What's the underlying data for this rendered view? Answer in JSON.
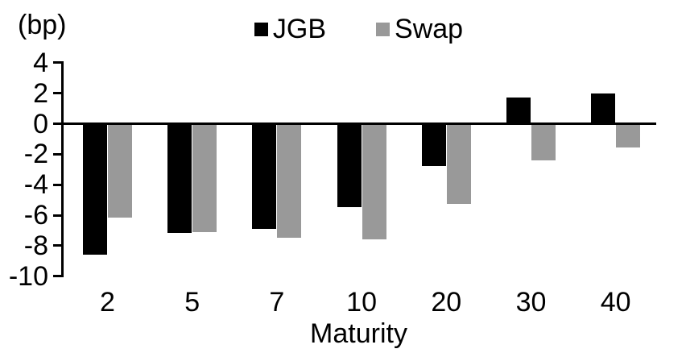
{
  "chart_data": {
    "type": "bar",
    "title": "",
    "unit_label": "(bp)",
    "xlabel": "Maturity",
    "categories": [
      "2",
      "5",
      "7",
      "10",
      "20",
      "30",
      "40"
    ],
    "series": [
      {
        "name": "JGB",
        "color": "#000000",
        "values": [
          -8.5,
          -7.1,
          -6.8,
          -5.4,
          -2.7,
          1.7,
          2.0
        ]
      },
      {
        "name": "Swap",
        "color": "#999999",
        "values": [
          -6.1,
          -7.0,
          -7.4,
          -7.5,
          -5.2,
          -2.3,
          -1.5
        ]
      }
    ],
    "ylim": [
      -10,
      4
    ],
    "yticks": [
      4,
      2,
      0,
      -2,
      -4,
      -6,
      -8,
      -10
    ],
    "grid": false,
    "legend_position": "top-center",
    "axis_color": "#000000",
    "background_color": "#ffffff"
  }
}
